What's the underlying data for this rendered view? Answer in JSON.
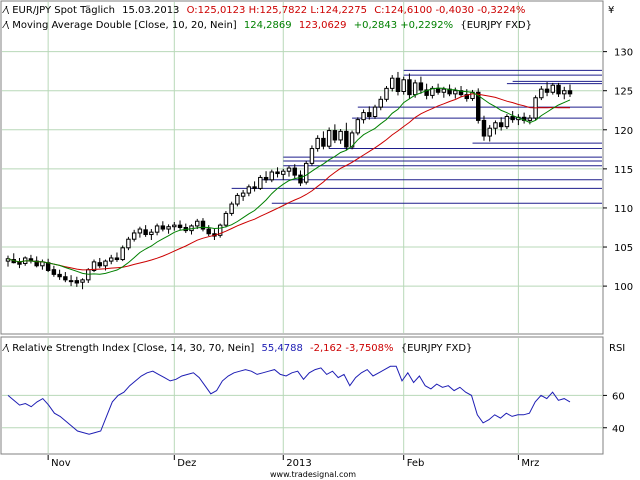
{
  "header": {
    "symbol": "EUR/JPY Spot Täglich",
    "date": "15.03.2013",
    "ohlc": "O:125,0123 H:125,7822 L:124,2275",
    "close_text": "C:124,6100 -0,4030 -0,3224%",
    "ma_name": "Moving Average Double [Close, 10, 20, Nein]",
    "ma_fast": "124,2869",
    "ma_slow": "123,0629",
    "ma_diff": "+0,2843 +0,2292%",
    "ma_src": "{EURJPY FXD}",
    "rsi_name": "Relative Strength Index [Close, 14, 30, 70, Nein]",
    "rsi_value": "55,4788",
    "rsi_change": "-2,162 -3,7508%",
    "rsi_src": "{EURJPY FXD}"
  },
  "currency_symbol": "¥",
  "rsi_axis_label": "RSI",
  "watermark": "www.tradesignal.com",
  "colors": {
    "bg": "#ffffff",
    "grid": "#b8d8b8",
    "ma_fast": "#008000",
    "ma_slow": "#cc0000",
    "rsi": "#1e1eb4",
    "hlines": "#1e1e8c",
    "header_red": "#cc0000",
    "header_green": "#008000",
    "header_blue": "#1e1eb4"
  },
  "chart_data": [
    {
      "type": "candlestick",
      "title": "EUR/JPY Spot Täglich",
      "ylim": [
        94,
        132
      ],
      "y_ticks": [
        100,
        105,
        110,
        115,
        120,
        125,
        130
      ],
      "x_labels": [
        {
          "i": 7,
          "label": "Nov"
        },
        {
          "i": 29,
          "label": "Dez"
        },
        {
          "i": 48,
          "label": "2013"
        },
        {
          "i": 69,
          "label": "Feb"
        },
        {
          "i": 89,
          "label": "Mrz"
        }
      ],
      "candles": [
        {
          "o": 103.2,
          "h": 103.9,
          "l": 102.5,
          "c": 103.5
        },
        {
          "o": 103.4,
          "h": 104.2,
          "l": 102.9,
          "c": 103.0
        },
        {
          "o": 103.1,
          "h": 103.6,
          "l": 102.3,
          "c": 102.8
        },
        {
          "o": 102.9,
          "h": 103.8,
          "l": 102.6,
          "c": 103.6
        },
        {
          "o": 103.5,
          "h": 104.0,
          "l": 102.9,
          "c": 103.2
        },
        {
          "o": 103.2,
          "h": 103.8,
          "l": 102.4,
          "c": 102.6
        },
        {
          "o": 102.6,
          "h": 103.4,
          "l": 102.1,
          "c": 103.1
        },
        {
          "o": 103.0,
          "h": 103.5,
          "l": 101.8,
          "c": 102.0
        },
        {
          "o": 102.1,
          "h": 102.6,
          "l": 101.2,
          "c": 101.5
        },
        {
          "o": 101.5,
          "h": 102.1,
          "l": 100.8,
          "c": 101.2
        },
        {
          "o": 101.2,
          "h": 101.8,
          "l": 100.5,
          "c": 100.8
        },
        {
          "o": 100.7,
          "h": 101.4,
          "l": 100.0,
          "c": 100.6
        },
        {
          "o": 100.7,
          "h": 101.2,
          "l": 99.9,
          "c": 100.4
        },
        {
          "o": 100.5,
          "h": 101.0,
          "l": 99.6,
          "c": 100.8
        },
        {
          "o": 100.8,
          "h": 102.3,
          "l": 100.4,
          "c": 102.1
        },
        {
          "o": 102.0,
          "h": 103.4,
          "l": 101.8,
          "c": 103.1
        },
        {
          "o": 103.0,
          "h": 103.6,
          "l": 102.3,
          "c": 102.6
        },
        {
          "o": 102.6,
          "h": 103.4,
          "l": 102.0,
          "c": 103.2
        },
        {
          "o": 103.2,
          "h": 104.0,
          "l": 102.8,
          "c": 103.6
        },
        {
          "o": 103.6,
          "h": 104.3,
          "l": 103.1,
          "c": 103.4
        },
        {
          "o": 103.4,
          "h": 105.2,
          "l": 103.2,
          "c": 104.9
        },
        {
          "o": 104.9,
          "h": 106.3,
          "l": 104.6,
          "c": 106.0
        },
        {
          "o": 106.0,
          "h": 107.2,
          "l": 105.7,
          "c": 106.8
        },
        {
          "o": 106.8,
          "h": 107.6,
          "l": 106.2,
          "c": 107.3
        },
        {
          "o": 107.2,
          "h": 107.8,
          "l": 106.3,
          "c": 106.6
        },
        {
          "o": 106.6,
          "h": 107.3,
          "l": 105.9,
          "c": 106.9
        },
        {
          "o": 106.9,
          "h": 108.0,
          "l": 106.5,
          "c": 107.7
        },
        {
          "o": 107.7,
          "h": 108.3,
          "l": 107.0,
          "c": 107.3
        },
        {
          "o": 107.3,
          "h": 107.9,
          "l": 106.7,
          "c": 107.6
        },
        {
          "o": 107.6,
          "h": 108.2,
          "l": 107.1,
          "c": 107.8
        },
        {
          "o": 107.8,
          "h": 108.4,
          "l": 107.2,
          "c": 107.5
        },
        {
          "o": 107.5,
          "h": 108.0,
          "l": 106.8,
          "c": 107.1
        },
        {
          "o": 107.1,
          "h": 107.9,
          "l": 106.6,
          "c": 107.7
        },
        {
          "o": 107.7,
          "h": 108.6,
          "l": 107.3,
          "c": 108.3
        },
        {
          "o": 108.3,
          "h": 108.7,
          "l": 107.0,
          "c": 107.3
        },
        {
          "o": 107.3,
          "h": 107.8,
          "l": 106.4,
          "c": 106.7
        },
        {
          "o": 106.7,
          "h": 107.3,
          "l": 105.9,
          "c": 106.4
        },
        {
          "o": 106.5,
          "h": 108.0,
          "l": 106.2,
          "c": 107.8
        },
        {
          "o": 107.8,
          "h": 109.6,
          "l": 107.5,
          "c": 109.3
        },
        {
          "o": 109.3,
          "h": 110.8,
          "l": 109.0,
          "c": 110.5
        },
        {
          "o": 110.5,
          "h": 111.9,
          "l": 110.2,
          "c": 111.6
        },
        {
          "o": 111.5,
          "h": 112.3,
          "l": 110.9,
          "c": 111.9
        },
        {
          "o": 111.9,
          "h": 113.0,
          "l": 111.5,
          "c": 112.7
        },
        {
          "o": 112.7,
          "h": 113.4,
          "l": 112.1,
          "c": 112.5
        },
        {
          "o": 112.5,
          "h": 114.2,
          "l": 112.3,
          "c": 113.9
        },
        {
          "o": 113.9,
          "h": 114.7,
          "l": 113.2,
          "c": 113.6
        },
        {
          "o": 113.6,
          "h": 114.9,
          "l": 113.3,
          "c": 114.6
        },
        {
          "o": 114.6,
          "h": 115.2,
          "l": 113.9,
          "c": 114.4
        },
        {
          "o": 114.3,
          "h": 115.0,
          "l": 113.6,
          "c": 114.7
        },
        {
          "o": 114.7,
          "h": 115.4,
          "l": 114.0,
          "c": 115.1
        },
        {
          "o": 115.1,
          "h": 115.6,
          "l": 113.8,
          "c": 114.2
        },
        {
          "o": 114.2,
          "h": 114.8,
          "l": 112.8,
          "c": 113.2
        },
        {
          "o": 113.3,
          "h": 116.0,
          "l": 113.0,
          "c": 115.7
        },
        {
          "o": 115.7,
          "h": 118.0,
          "l": 115.4,
          "c": 117.6
        },
        {
          "o": 117.6,
          "h": 119.3,
          "l": 117.2,
          "c": 118.9
        },
        {
          "o": 118.9,
          "h": 119.8,
          "l": 117.5,
          "c": 117.9
        },
        {
          "o": 117.9,
          "h": 120.3,
          "l": 117.6,
          "c": 119.9
        },
        {
          "o": 119.9,
          "h": 120.7,
          "l": 118.3,
          "c": 118.7
        },
        {
          "o": 118.7,
          "h": 120.1,
          "l": 118.2,
          "c": 119.8
        },
        {
          "o": 119.8,
          "h": 120.9,
          "l": 117.4,
          "c": 117.8
        },
        {
          "o": 117.8,
          "h": 119.9,
          "l": 117.5,
          "c": 119.6
        },
        {
          "o": 119.6,
          "h": 121.6,
          "l": 119.3,
          "c": 121.3
        },
        {
          "o": 121.3,
          "h": 122.6,
          "l": 120.8,
          "c": 122.2
        },
        {
          "o": 122.2,
          "h": 123.0,
          "l": 121.3,
          "c": 121.7
        },
        {
          "o": 121.7,
          "h": 123.2,
          "l": 121.4,
          "c": 122.9
        },
        {
          "o": 122.9,
          "h": 124.3,
          "l": 122.5,
          "c": 123.9
        },
        {
          "o": 123.9,
          "h": 125.6,
          "l": 123.6,
          "c": 125.3
        },
        {
          "o": 125.3,
          "h": 127.0,
          "l": 124.9,
          "c": 126.6
        },
        {
          "o": 126.6,
          "h": 127.4,
          "l": 124.4,
          "c": 124.9
        },
        {
          "o": 124.9,
          "h": 126.8,
          "l": 124.5,
          "c": 126.4
        },
        {
          "o": 126.4,
          "h": 127.2,
          "l": 124.0,
          "c": 124.5
        },
        {
          "o": 124.5,
          "h": 126.4,
          "l": 124.1,
          "c": 126.0
        },
        {
          "o": 126.0,
          "h": 126.8,
          "l": 124.6,
          "c": 125.1
        },
        {
          "o": 125.1,
          "h": 125.9,
          "l": 123.9,
          "c": 124.4
        },
        {
          "o": 124.4,
          "h": 125.6,
          "l": 124.0,
          "c": 125.3
        },
        {
          "o": 125.3,
          "h": 125.9,
          "l": 124.5,
          "c": 124.8
        },
        {
          "o": 124.8,
          "h": 125.5,
          "l": 124.1,
          "c": 125.2
        },
        {
          "o": 125.2,
          "h": 125.8,
          "l": 124.3,
          "c": 124.6
        },
        {
          "o": 124.6,
          "h": 125.4,
          "l": 124.0,
          "c": 125.0
        },
        {
          "o": 125.0,
          "h": 125.6,
          "l": 124.2,
          "c": 124.5
        },
        {
          "o": 124.5,
          "h": 125.2,
          "l": 123.6,
          "c": 124.0
        },
        {
          "o": 124.0,
          "h": 125.1,
          "l": 123.7,
          "c": 124.8
        },
        {
          "o": 124.8,
          "h": 125.3,
          "l": 120.8,
          "c": 121.2
        },
        {
          "o": 121.2,
          "h": 121.8,
          "l": 118.6,
          "c": 119.2
        },
        {
          "o": 119.2,
          "h": 120.6,
          "l": 118.5,
          "c": 120.2
        },
        {
          "o": 120.2,
          "h": 121.2,
          "l": 119.4,
          "c": 120.9
        },
        {
          "o": 120.9,
          "h": 121.6,
          "l": 119.9,
          "c": 120.4
        },
        {
          "o": 120.4,
          "h": 122.0,
          "l": 120.1,
          "c": 121.7
        },
        {
          "o": 121.7,
          "h": 122.4,
          "l": 120.9,
          "c": 121.3
        },
        {
          "o": 121.3,
          "h": 122.0,
          "l": 120.6,
          "c": 121.6
        },
        {
          "o": 121.6,
          "h": 122.2,
          "l": 120.8,
          "c": 121.2
        },
        {
          "o": 121.2,
          "h": 121.9,
          "l": 120.7,
          "c": 121.5
        },
        {
          "o": 121.5,
          "h": 124.4,
          "l": 121.2,
          "c": 124.1
        },
        {
          "o": 124.1,
          "h": 125.6,
          "l": 123.8,
          "c": 125.2
        },
        {
          "o": 125.2,
          "h": 126.1,
          "l": 124.3,
          "c": 124.8
        },
        {
          "o": 124.8,
          "h": 126.0,
          "l": 124.5,
          "c": 125.7
        },
        {
          "o": 125.7,
          "h": 126.0,
          "l": 124.2,
          "c": 124.6
        },
        {
          "o": 124.6,
          "h": 125.5,
          "l": 123.9,
          "c": 125.0
        },
        {
          "o": 125.0,
          "h": 125.8,
          "l": 124.2,
          "c": 124.6
        }
      ],
      "horizontal_levels": [
        {
          "y": 127.6,
          "from": 69
        },
        {
          "y": 127.0,
          "from": 69
        },
        {
          "y": 126.2,
          "from": 88
        },
        {
          "y": 125.9,
          "from": 87
        },
        {
          "y": 122.9,
          "from": 61
        },
        {
          "y": 121.5,
          "from": 60
        },
        {
          "y": 118.3,
          "from": 81
        },
        {
          "y": 117.6,
          "from": 56
        },
        {
          "y": 116.5,
          "from": 48
        },
        {
          "y": 116.0,
          "from": 48
        },
        {
          "y": 115.4,
          "from": 48
        },
        {
          "y": 113.6,
          "from": 44
        },
        {
          "y": 112.5,
          "from": 39
        },
        {
          "y": 110.6,
          "from": 46
        }
      ]
    },
    {
      "type": "line",
      "title": "Relative Strength Index",
      "ylim": [
        25,
        85
      ],
      "y_ticks": [
        40,
        60
      ],
      "series": [
        {
          "values": [
            60,
            57,
            54,
            55,
            53,
            56,
            58,
            54,
            49,
            47,
            44,
            41,
            38,
            37,
            36,
            37,
            38,
            47,
            56,
            60,
            62,
            66,
            69,
            72,
            74,
            75,
            73,
            71,
            69,
            70,
            72,
            73,
            74,
            71,
            66,
            61,
            63,
            69,
            72,
            74,
            75,
            76,
            75,
            73,
            74,
            75,
            76,
            73,
            72,
            74,
            75,
            70,
            74,
            76,
            77,
            73,
            75,
            71,
            73,
            66,
            71,
            74,
            76,
            72,
            74,
            76,
            78,
            78,
            69,
            74,
            68,
            72,
            66,
            64,
            67,
            65,
            66,
            63,
            65,
            62,
            60,
            48,
            43,
            45,
            48,
            46,
            49,
            47,
            48,
            48,
            49,
            56,
            60,
            58,
            62,
            57,
            58,
            56
          ]
        }
      ]
    }
  ]
}
